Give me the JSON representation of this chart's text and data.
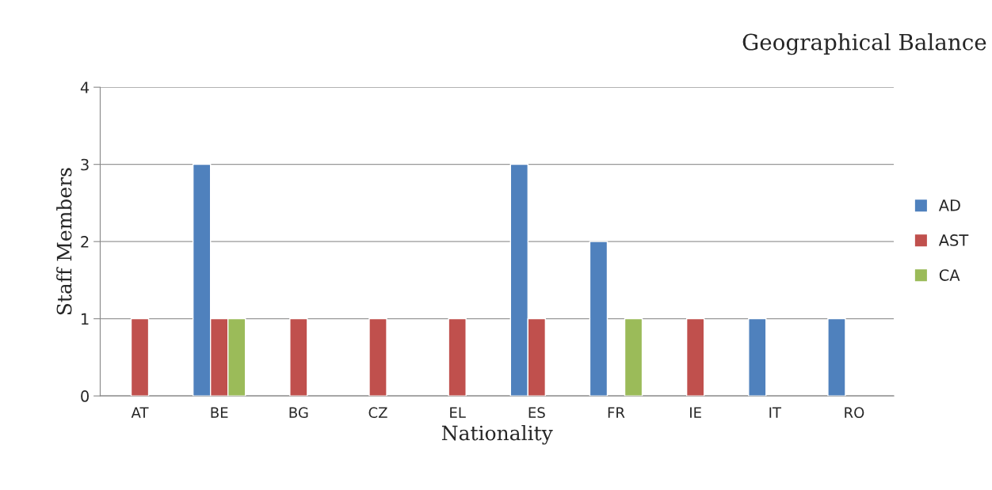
{
  "chart_data": {
    "type": "bar",
    "title": "Geographical Balance",
    "xlabel": "Nationality",
    "ylabel": "Staff Members",
    "categories": [
      "AT",
      "BE",
      "BG",
      "CZ",
      "EL",
      "ES",
      "FR",
      "IE",
      "IT",
      "RO"
    ],
    "series": [
      {
        "name": "AD",
        "color": "#4f81bd",
        "values": [
          null,
          3,
          null,
          null,
          null,
          3,
          2,
          null,
          1,
          1
        ]
      },
      {
        "name": "AST",
        "color": "#c0504d",
        "values": [
          1,
          1,
          1,
          1,
          1,
          1,
          null,
          1,
          null,
          null
        ]
      },
      {
        "name": "CA",
        "color": "#9bbb59",
        "values": [
          null,
          1,
          null,
          null,
          null,
          null,
          1,
          null,
          null,
          null
        ]
      }
    ],
    "ylim": [
      0,
      4
    ],
    "yticks": [
      0,
      1,
      2,
      3,
      4
    ],
    "grid": "y",
    "legend": "right"
  }
}
